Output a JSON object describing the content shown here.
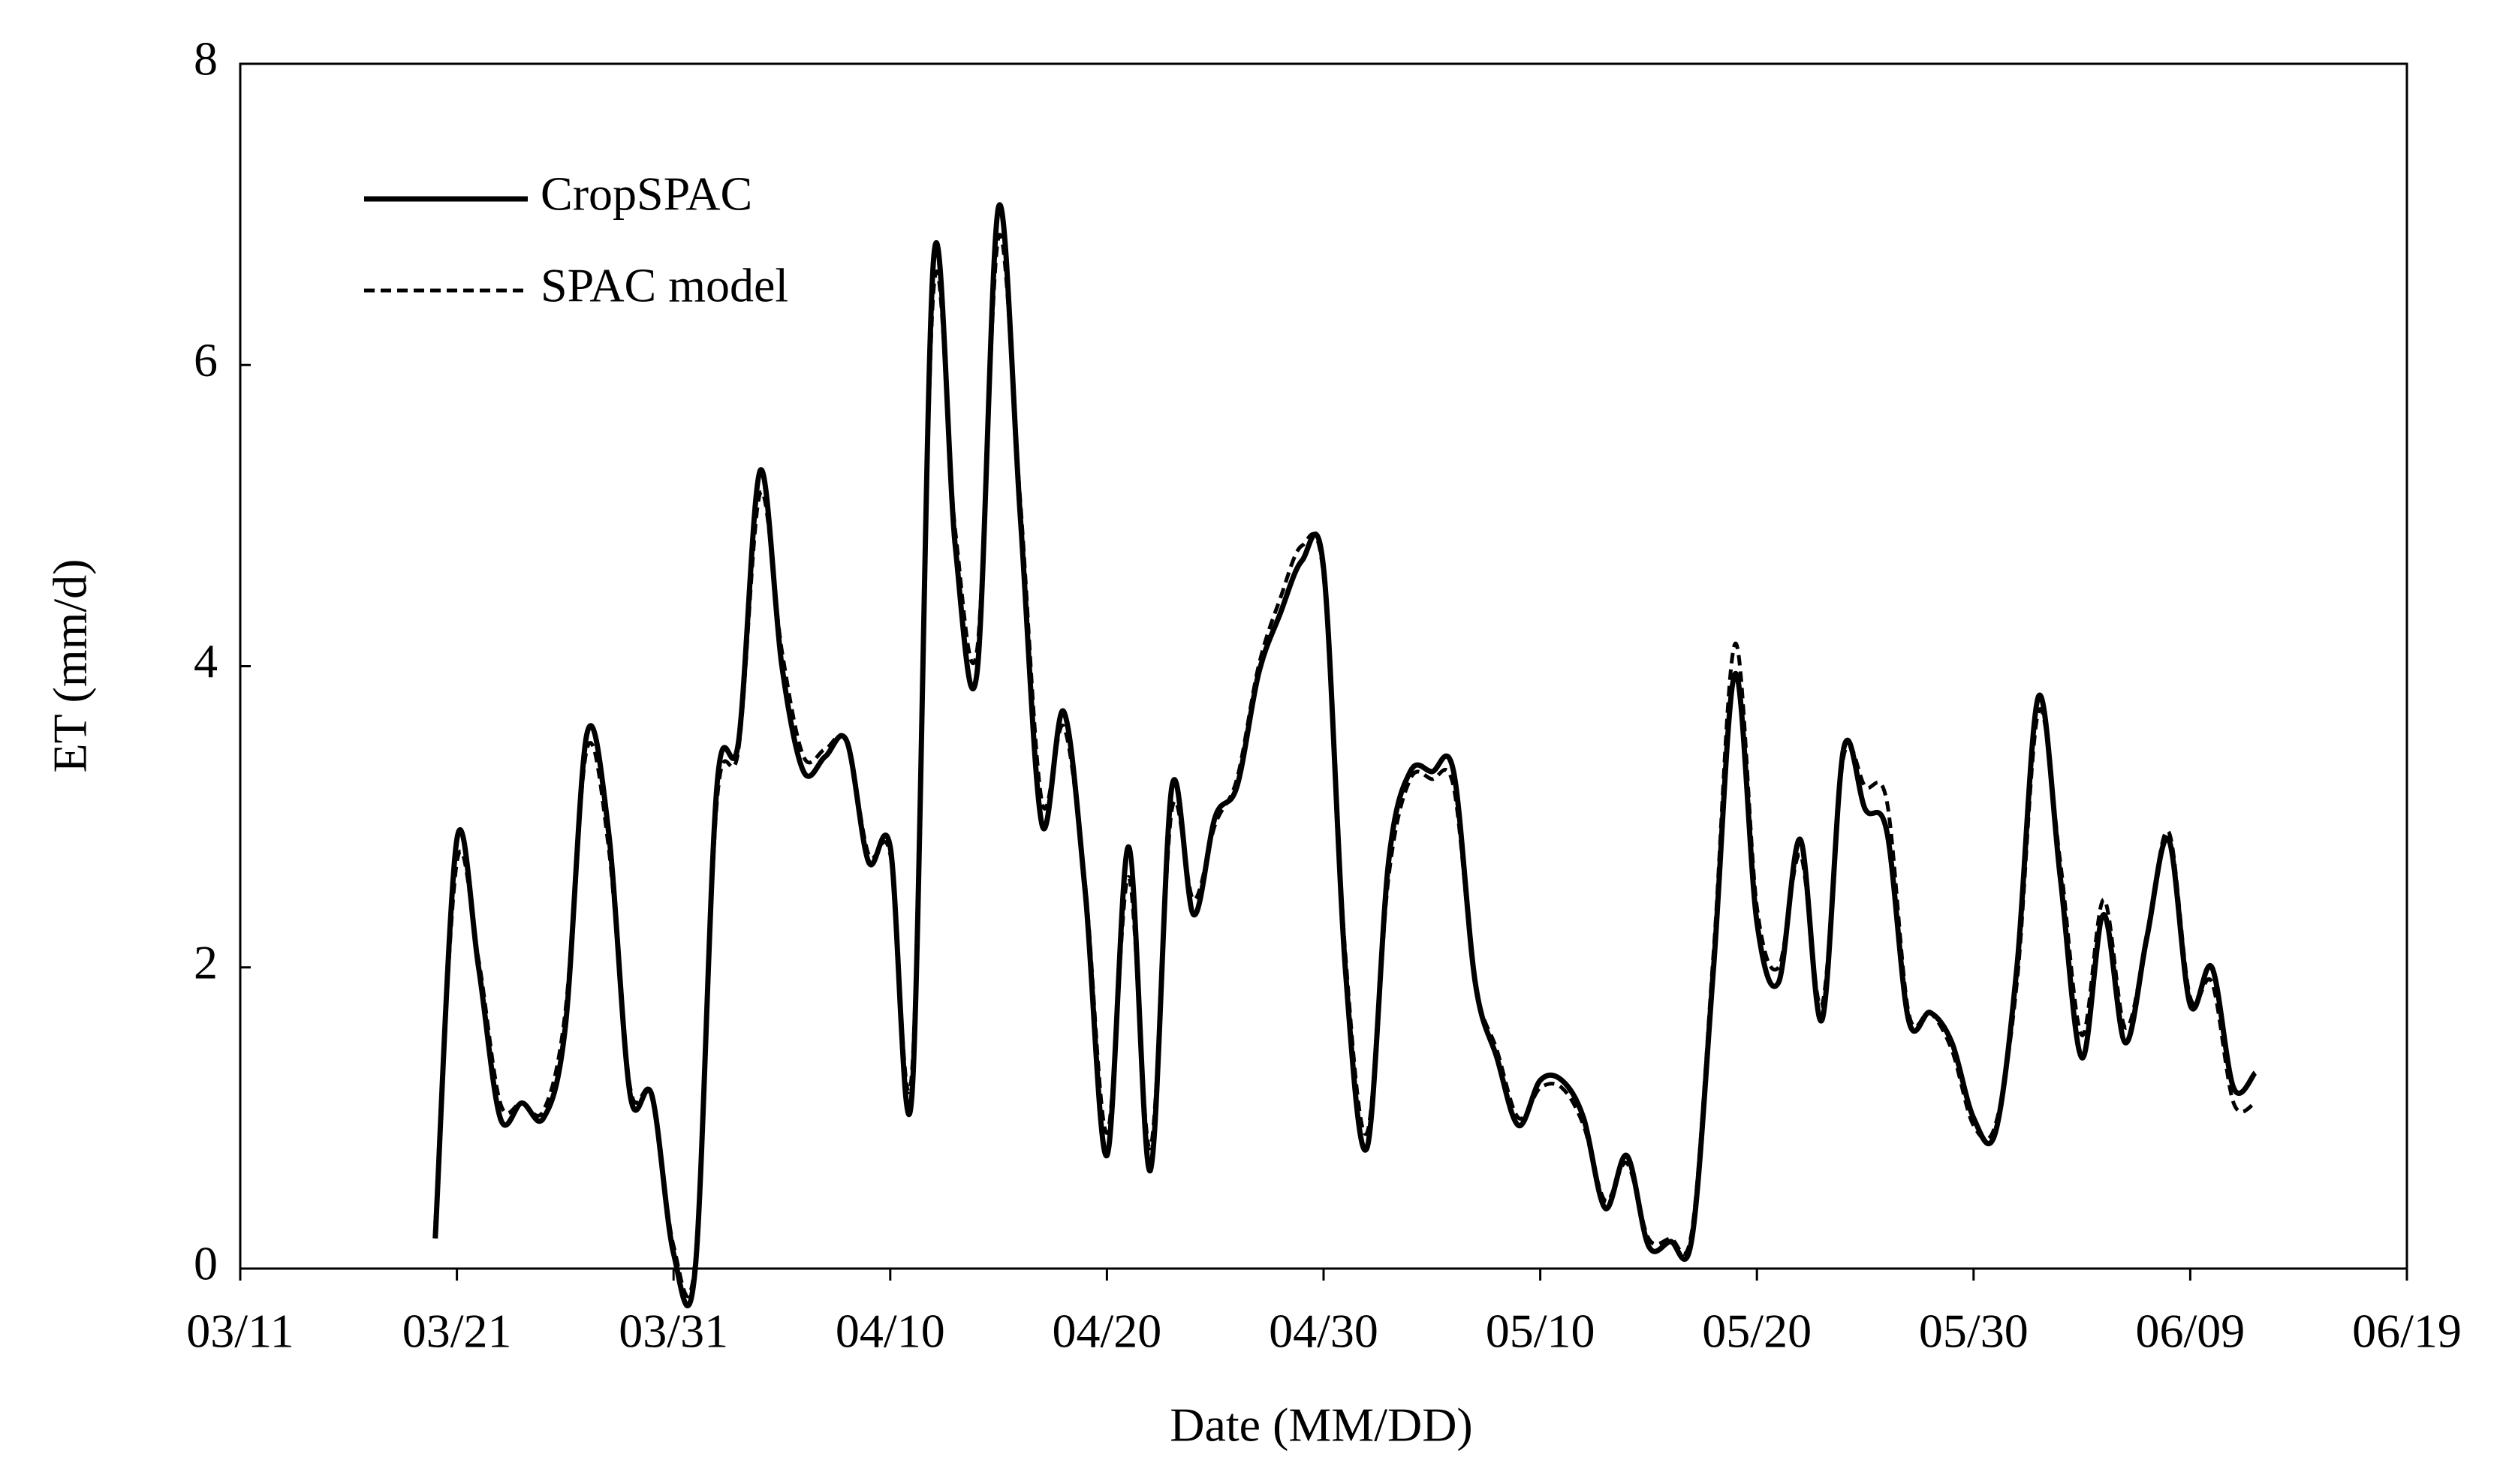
{
  "chart_data": {
    "type": "line",
    "xlabel": "Date (MM/DD)",
    "ylabel": "ET (mm/d)",
    "legend": "upper left",
    "x": [
      "03/20",
      "03/21",
      "03/22",
      "03/23",
      "03/24",
      "03/25",
      "03/26",
      "03/27",
      "03/28",
      "03/29",
      "03/30",
      "03/31",
      "04/01",
      "04/02",
      "04/03",
      "04/04",
      "04/05",
      "04/06",
      "04/07",
      "04/08",
      "04/09",
      "04/10",
      "04/11",
      "04/12",
      "04/13",
      "04/14",
      "04/15",
      "04/16",
      "04/17",
      "04/18",
      "04/19",
      "04/20",
      "04/21",
      "04/22",
      "04/23",
      "04/24",
      "04/25",
      "04/26",
      "04/27",
      "04/28",
      "04/29",
      "04/30",
      "05/01",
      "05/02",
      "05/03",
      "05/04",
      "05/05",
      "05/06",
      "05/07",
      "05/08",
      "05/09",
      "05/10",
      "05/11",
      "05/12",
      "05/13",
      "05/14",
      "05/15",
      "05/16",
      "05/17",
      "05/18",
      "05/19",
      "05/20",
      "05/21",
      "05/22",
      "05/23",
      "05/24",
      "05/25",
      "05/26",
      "05/27",
      "05/28",
      "05/29",
      "05/30",
      "05/31",
      "06/01",
      "06/02",
      "06/03",
      "06/04",
      "06/05",
      "06/06",
      "06/07",
      "06/08",
      "06/09",
      "06/10",
      "06/11",
      "06/12"
    ],
    "series": [
      {
        "name": "CropSPAC",
        "color": "#000000",
        "dash": false,
        "values": [
          0.2,
          2.85,
          2.0,
          1.0,
          1.1,
          1.0,
          1.6,
          3.55,
          2.9,
          1.15,
          1.15,
          0.1,
          0.0,
          3.2,
          3.5,
          5.3,
          4.0,
          3.3,
          3.4,
          3.5,
          2.7,
          2.8,
          1.15,
          6.7,
          4.8,
          3.95,
          7.05,
          5.0,
          2.95,
          3.7,
          2.5,
          0.75,
          2.8,
          0.65,
          3.2,
          2.35,
          3.0,
          3.2,
          3.95,
          4.35,
          4.7,
          4.65,
          2.0,
          0.8,
          2.7,
          3.3,
          3.3,
          3.3,
          1.9,
          1.4,
          0.95,
          1.25,
          1.25,
          1.0,
          0.4,
          0.75,
          0.15,
          0.18,
          0.2,
          2.0,
          3.95,
          2.3,
          1.9,
          2.85,
          1.65,
          3.45,
          3.05,
          2.9,
          1.65,
          1.7,
          1.5,
          1.0,
          0.9,
          2.0,
          3.8,
          2.6,
          1.4,
          2.35,
          1.5,
          2.2,
          2.85,
          1.75,
          2.0,
          1.2,
          1.3
        ]
      },
      {
        "name": "SPAC model",
        "color": "#000000",
        "dash": true,
        "values": [
          0.3,
          2.7,
          2.05,
          1.1,
          1.1,
          1.05,
          1.7,
          3.45,
          2.8,
          1.2,
          1.15,
          0.15,
          0.05,
          3.1,
          3.45,
          5.15,
          4.1,
          3.4,
          3.45,
          3.5,
          2.75,
          2.75,
          1.3,
          6.5,
          4.9,
          4.1,
          6.85,
          5.1,
          3.1,
          3.6,
          2.55,
          0.9,
          2.6,
          0.8,
          3.05,
          2.45,
          2.95,
          3.25,
          4.0,
          4.45,
          4.8,
          4.6,
          2.1,
          0.9,
          2.6,
          3.25,
          3.25,
          3.2,
          1.9,
          1.45,
          1.0,
          1.2,
          1.2,
          0.95,
          0.45,
          0.7,
          0.2,
          0.2,
          0.25,
          2.1,
          4.15,
          2.4,
          2.0,
          2.75,
          1.75,
          3.4,
          3.2,
          3.1,
          1.7,
          1.7,
          1.45,
          0.95,
          0.95,
          1.9,
          3.7,
          2.7,
          1.55,
          2.45,
          1.6,
          2.2,
          2.9,
          1.8,
          1.9,
          1.1,
          1.1
        ]
      }
    ],
    "xlim": [
      "03/11",
      "06/19"
    ],
    "xticks": [
      "03/11",
      "03/21",
      "03/31",
      "04/10",
      "04/20",
      "04/30",
      "05/10",
      "05/20",
      "05/30",
      "06/09",
      "06/19"
    ],
    "ylim": [
      0,
      8
    ],
    "yticks": [
      0,
      2,
      4,
      6,
      8
    ],
    "grid": false
  }
}
